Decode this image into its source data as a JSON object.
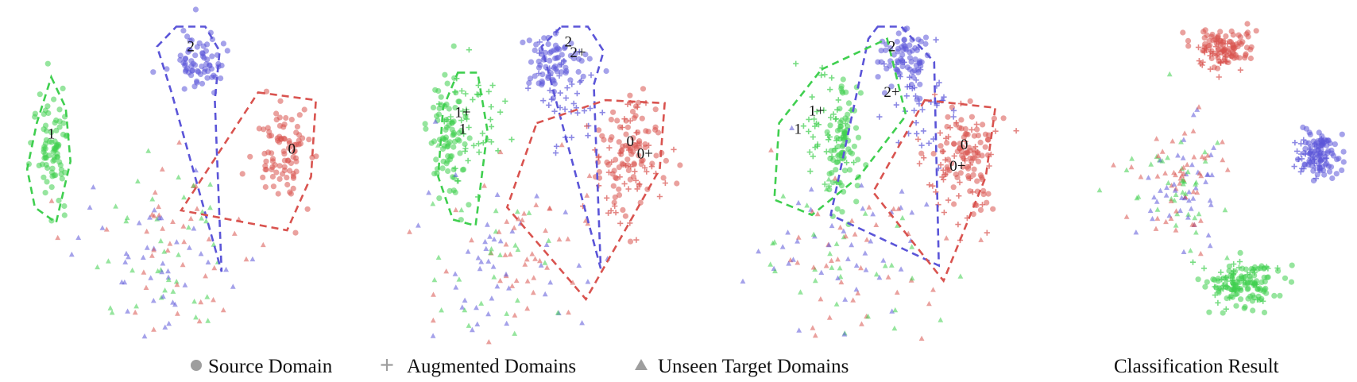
{
  "colors": {
    "class_0": "#d9534f",
    "class_1": "#3fcf4f",
    "class_2": "#5b55d8",
    "legend_marker": "#9e9e9e"
  },
  "legend": {
    "source": "Source Domain",
    "augmented": "Augmented Domains",
    "unseen": "Unseen Target Domains"
  },
  "panel_4_caption": "Classification Result",
  "chart_data": [
    {
      "type": "scatter",
      "panel": 1,
      "labels": [
        {
          "text": "2",
          "x": 0.3,
          "y": 0.82
        },
        {
          "text": "1",
          "x": -1.15,
          "y": 0.25
        },
        {
          "text": "0",
          "x": 1.35,
          "y": 0.15
        }
      ]
    },
    {
      "type": "scatter",
      "panel": 2,
      "labels": [
        {
          "text": "2",
          "x": 0.62,
          "y": 0.85
        },
        {
          "text": "2+",
          "x": 0.72,
          "y": 0.78
        },
        {
          "text": "1+",
          "x": -0.45,
          "y": 0.39
        },
        {
          "text": "1",
          "x": -0.45,
          "y": 0.28
        },
        {
          "text": "0",
          "x": 1.25,
          "y": 0.2
        },
        {
          "text": "0+",
          "x": 1.4,
          "y": 0.12
        }
      ]
    },
    {
      "type": "scatter",
      "panel": 3,
      "labels": [
        {
          "text": "2",
          "x": 0.45,
          "y": 0.82
        },
        {
          "text": "2+",
          "x": 0.45,
          "y": 0.52
        },
        {
          "text": "1+",
          "x": -0.35,
          "y": 0.4
        },
        {
          "text": "1",
          "x": -0.55,
          "y": 0.28
        },
        {
          "text": "0",
          "x": 1.22,
          "y": 0.18
        },
        {
          "text": "0+",
          "x": 1.15,
          "y": 0.04
        }
      ]
    },
    {
      "type": "scatter",
      "panel": 4,
      "labels": []
    }
  ]
}
